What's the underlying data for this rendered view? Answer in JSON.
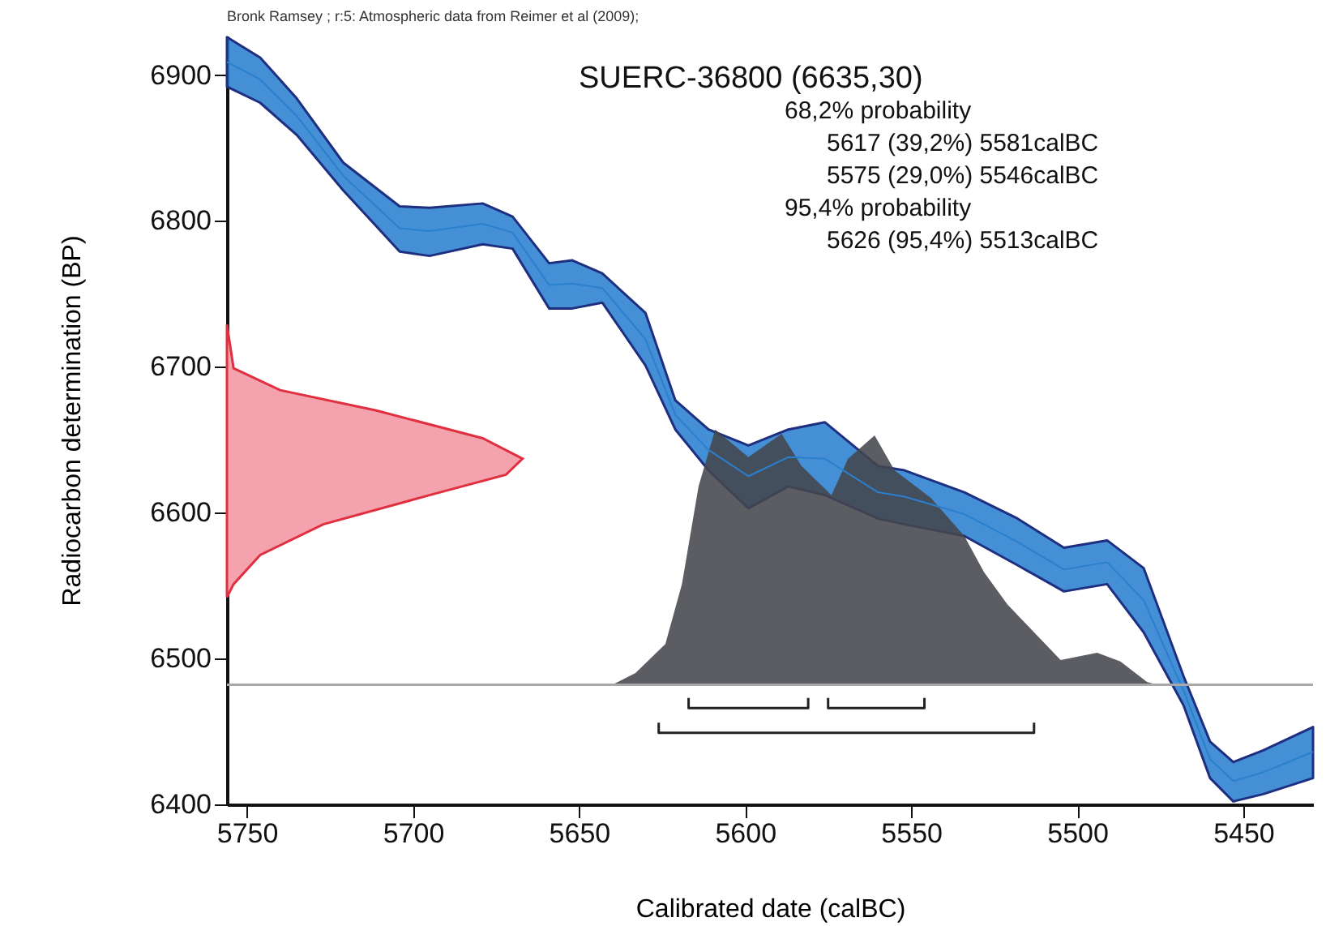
{
  "chart_data": {
    "type": "area",
    "xlabel": "Calibrated date (calBC)",
    "ylabel": "Radiocarbon determination (BP)",
    "annotations": [
      "Bronk Ramsey ; r:5: Atmospheric data from Reimer et al (2009);",
      "SUERC-36800 (6635,30)",
      "68,2% probability",
      "5617 (39,2%) 5581calBC",
      "5575 (29,0%) 5546calBC",
      "95,4% probability",
      "5626 (95,4%) 5513calBC"
    ],
    "xlim": [
      5756,
      5429
    ],
    "xticks": [
      5750,
      5700,
      5650,
      5600,
      5550,
      5500,
      5450
    ],
    "ylim": [
      6400,
      6927
    ],
    "yticks": [
      6400,
      6500,
      6600,
      6700,
      6800,
      6900
    ],
    "grid": false,
    "ref_lines": [
      {
        "axis": "y",
        "value": 6482,
        "color": "#a8a8a8"
      }
    ],
    "series": [
      {
        "type": "line",
        "color": "#2a7fcf",
        "x": [
          5756,
          5746,
          5735,
          5721,
          5704,
          5695,
          5679,
          5670,
          5659,
          5652,
          5643,
          5630,
          5621,
          5611,
          5599,
          5587,
          5576,
          5560,
          5552,
          5534,
          5518,
          5504,
          5491,
          5480,
          5468,
          5460,
          5453,
          5444,
          5429
        ],
        "values": [
          6909,
          6897,
          6872,
          6831,
          6795,
          6793,
          6798,
          6792,
          6756,
          6757,
          6754,
          6719,
          6667,
          6643,
          6625,
          6638,
          6637,
          6614,
          6611,
          6599,
          6580,
          6561,
          6566,
          6540,
          6478,
          6431,
          6416,
          6422,
          6436
        ],
        "lower": [
          6892,
          6881,
          6859,
          6821,
          6779,
          6776,
          6784,
          6781,
          6740,
          6740,
          6744,
          6701,
          6657,
          6629,
          6603,
          6618,
          6612,
          6596,
          6592,
          6584,
          6564,
          6546,
          6551,
          6518,
          6468,
          6418,
          6402,
          6407,
          6418
        ],
        "upper": [
          6926,
          6912,
          6884,
          6840,
          6810,
          6809,
          6812,
          6803,
          6771,
          6773,
          6764,
          6737,
          6677,
          6657,
          6646,
          6657,
          6662,
          6632,
          6629,
          6614,
          6596,
          6576,
          6581,
          6562,
          6488,
          6443,
          6429,
          6437,
          6453
        ]
      },
      {
        "color": "#44474c",
        "x": [
          5728,
          5640,
          5633,
          5624,
          5619,
          5614,
          5609,
          5599,
          5589,
          5583,
          5574,
          5569,
          5561,
          5555,
          5544,
          5534,
          5528,
          5521,
          5513,
          5505,
          5494,
          5487,
          5479,
          5476,
          5454
        ],
        "values": [
          6482,
          6482,
          6490,
          6510,
          6551,
          6618,
          6657,
          6638,
          6654,
          6632,
          6612,
          6637,
          6653,
          6629,
          6610,
          6584,
          6559,
          6537,
          6518,
          6499,
          6504,
          6498,
          6484,
          6482,
          6482
        ]
      },
      {
        "color": "#f4a3ae",
        "x": [
          5756,
          5754,
          5740,
          5711,
          5679,
          5667,
          5672,
          5695,
          5727,
          5746,
          5754,
          5756
        ],
        "values": [
          6729,
          6699,
          6684,
          6670,
          6651,
          6637,
          6626,
          6612,
          6592,
          6571,
          6551,
          6542
        ]
      },
      {
        "type": "line",
        "color": "#222222",
        "x": [
          5617,
          5617,
          5581,
          5581
        ],
        "values": [
          6473,
          6466,
          6466,
          6473
        ]
      },
      {
        "type": "line",
        "color": "#222222",
        "x": [
          5575,
          5575,
          5546,
          5546
        ],
        "values": [
          6473,
          6466,
          6466,
          6473
        ]
      },
      {
        "type": "line",
        "color": "#222222",
        "x": [
          5626,
          5626,
          5513,
          5513
        ],
        "values": [
          6456,
          6449,
          6449,
          6456
        ]
      }
    ]
  }
}
